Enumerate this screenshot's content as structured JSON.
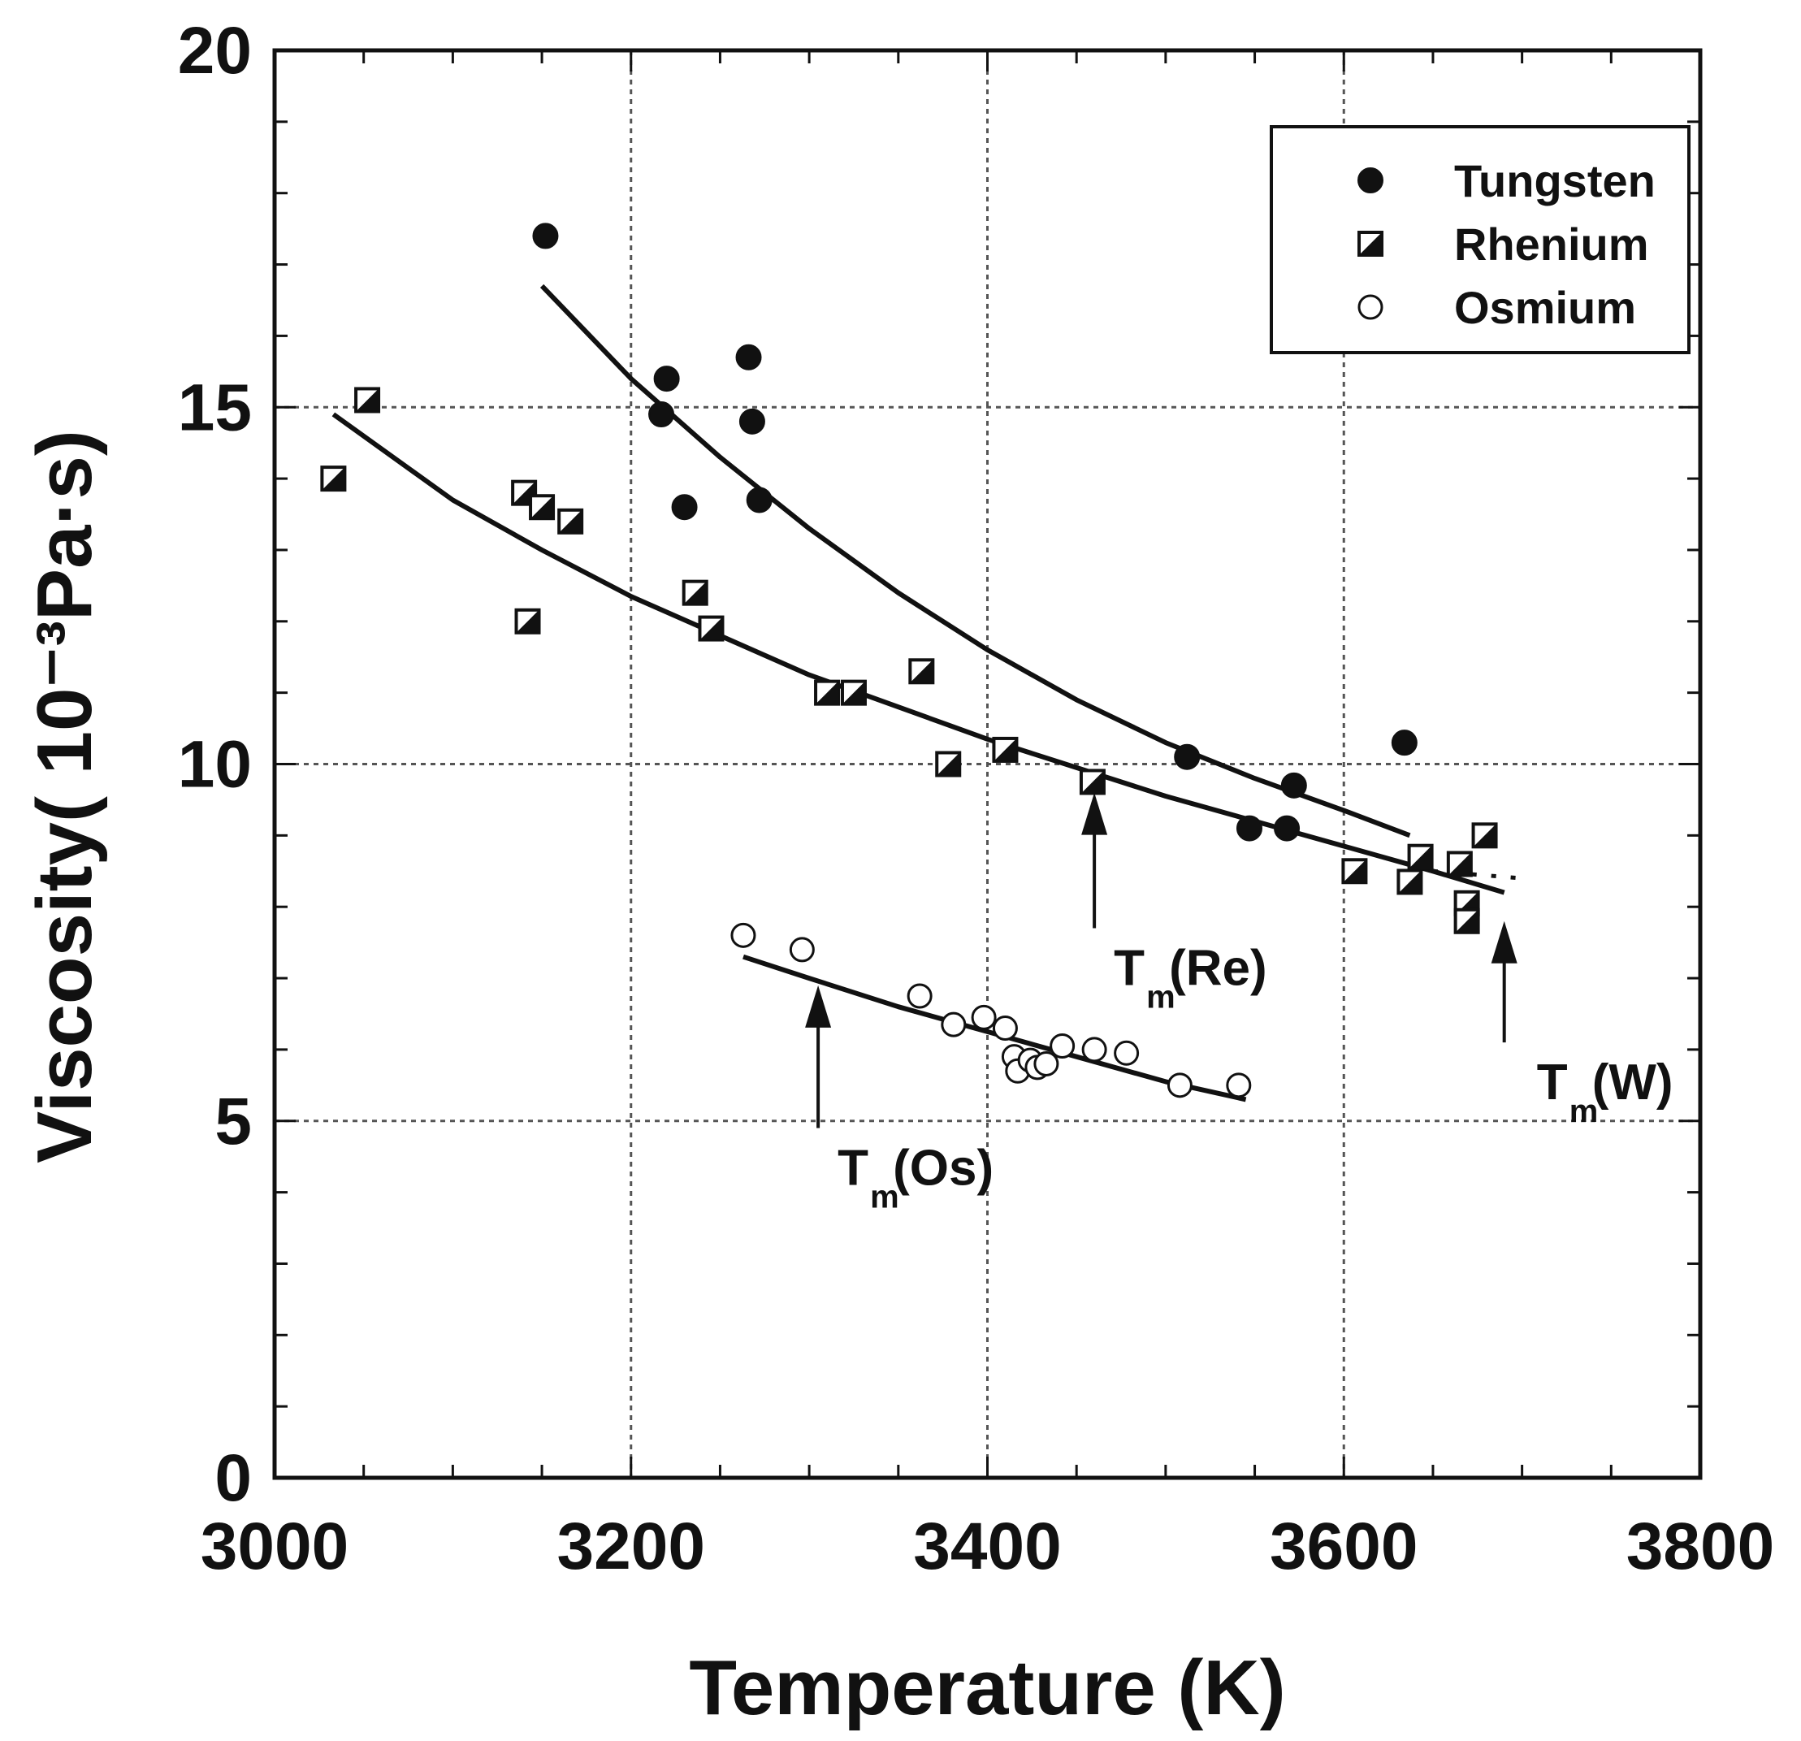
{
  "chart_data": {
    "type": "scatter",
    "title": "",
    "xlabel": "Temperature (K)",
    "ylabel": "Viscosity( 10⁻³Pa·s)",
    "xlim": [
      3000,
      3800
    ],
    "ylim": [
      0,
      20
    ],
    "x_ticks": [
      3000,
      3200,
      3400,
      3600,
      3800
    ],
    "y_ticks": [
      0,
      5,
      10,
      15,
      20
    ],
    "x_minor_step": 50,
    "y_minor_step": 1,
    "x_grid": [
      3200,
      3400,
      3600
    ],
    "y_grid": [
      5,
      10,
      15
    ],
    "legend": {
      "position": "top-right",
      "entries": [
        "Tungsten",
        "Rhenium",
        "Osmium"
      ]
    },
    "series": [
      {
        "name": "Tungsten",
        "marker": "filled-circle",
        "points": [
          [
            3152,
            17.4
          ],
          [
            3220,
            15.4
          ],
          [
            3217,
            14.9
          ],
          [
            3230,
            13.6
          ],
          [
            3266,
            15.7
          ],
          [
            3268,
            14.8
          ],
          [
            3272,
            13.7
          ],
          [
            3512,
            10.1
          ],
          [
            3547,
            9.1
          ],
          [
            3568,
            9.1
          ],
          [
            3572,
            9.7
          ],
          [
            3634,
            10.3
          ]
        ],
        "fit": [
          [
            3150,
            16.7
          ],
          [
            3200,
            15.4
          ],
          [
            3250,
            14.3
          ],
          [
            3300,
            13.3
          ],
          [
            3350,
            12.4
          ],
          [
            3400,
            11.6
          ],
          [
            3450,
            10.9
          ],
          [
            3500,
            10.3
          ],
          [
            3550,
            9.8
          ],
          [
            3600,
            9.35
          ],
          [
            3637,
            9.0
          ]
        ]
      },
      {
        "name": "Rhenium",
        "marker": "half-filled-square",
        "points": [
          [
            3033,
            14.0
          ],
          [
            3052,
            15.1
          ],
          [
            3140,
            13.8
          ],
          [
            3150,
            13.6
          ],
          [
            3166,
            13.4
          ],
          [
            3142,
            12.0
          ],
          [
            3236,
            12.4
          ],
          [
            3245,
            11.9
          ],
          [
            3310,
            11.0
          ],
          [
            3325,
            11.0
          ],
          [
            3363,
            11.3
          ],
          [
            3378,
            10.0
          ],
          [
            3410,
            10.2
          ],
          [
            3459,
            9.75
          ],
          [
            3606,
            8.5
          ],
          [
            3637,
            8.35
          ],
          [
            3643,
            8.7
          ],
          [
            3665,
            8.6
          ],
          [
            3669,
            8.05
          ],
          [
            3669,
            7.8
          ],
          [
            3679,
            9.0
          ]
        ],
        "fit": [
          [
            3033,
            14.9
          ],
          [
            3100,
            13.7
          ],
          [
            3150,
            13.0
          ],
          [
            3200,
            12.35
          ],
          [
            3250,
            11.8
          ],
          [
            3300,
            11.25
          ],
          [
            3350,
            10.8
          ],
          [
            3400,
            10.35
          ],
          [
            3450,
            9.95
          ],
          [
            3500,
            9.55
          ],
          [
            3550,
            9.2
          ],
          [
            3600,
            8.85
          ],
          [
            3650,
            8.5
          ],
          [
            3690,
            8.2
          ]
        ],
        "fit_extension": [
          [
            3650,
            8.5
          ],
          [
            3700,
            8.4
          ]
        ]
      },
      {
        "name": "Osmium",
        "marker": "open-circle",
        "points": [
          [
            3263,
            7.6
          ],
          [
            3296,
            7.4
          ],
          [
            3362,
            6.75
          ],
          [
            3381,
            6.35
          ],
          [
            3398,
            6.45
          ],
          [
            3410,
            6.3
          ],
          [
            3415,
            5.9
          ],
          [
            3417,
            5.7
          ],
          [
            3424,
            5.85
          ],
          [
            3428,
            5.75
          ],
          [
            3433,
            5.8
          ],
          [
            3442,
            6.05
          ],
          [
            3460,
            6.0
          ],
          [
            3478,
            5.95
          ],
          [
            3508,
            5.5
          ],
          [
            3541,
            5.5
          ]
        ],
        "fit": [
          [
            3263,
            7.3
          ],
          [
            3300,
            7.0
          ],
          [
            3350,
            6.6
          ],
          [
            3400,
            6.25
          ],
          [
            3450,
            5.9
          ],
          [
            3500,
            5.55
          ],
          [
            3545,
            5.3
          ]
        ]
      }
    ],
    "annotations": [
      {
        "label": "T",
        "subscript": "m",
        "suffix": "(Re)",
        "arrow_x": 3460,
        "arrow_from_y": 7.7,
        "arrow_to_y": 9.6
      },
      {
        "label": "T",
        "subscript": "m",
        "suffix": "(Os)",
        "arrow_x": 3305,
        "arrow_from_y": 4.9,
        "arrow_to_y": 6.9
      },
      {
        "label": "T",
        "subscript": "m",
        "suffix": "(W)",
        "arrow_x": 3690,
        "arrow_from_y": 6.1,
        "arrow_to_y": 7.8
      }
    ]
  }
}
